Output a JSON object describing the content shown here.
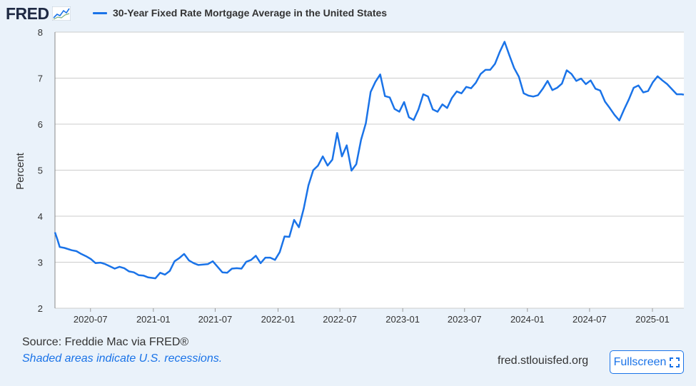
{
  "header": {
    "logo_text": "FRED"
  },
  "footer": {
    "source": "Source: Freddie Mac via FRED®",
    "recession_note": "Shaded areas indicate U.S. recessions.",
    "site": "fred.stlouisfed.org",
    "fullscreen_label": "Fullscreen"
  },
  "colors": {
    "series": "#1a73e8",
    "background": "#eaf2fa",
    "plot_bg": "#ffffff",
    "grid": "#cccccc"
  },
  "chart_data": {
    "type": "line",
    "title": "",
    "xlabel": "",
    "ylabel": "Percent",
    "ylim": [
      2,
      8
    ],
    "xlim": [
      "2020-03-19",
      "2025-04-03"
    ],
    "y_ticks": [
      2,
      3,
      4,
      5,
      6,
      7,
      8
    ],
    "x_ticks": [
      "2020-07",
      "2021-01",
      "2021-07",
      "2022-01",
      "2022-07",
      "2023-01",
      "2023-07",
      "2024-01",
      "2024-07",
      "2025-01"
    ],
    "grid": true,
    "legend": "top-left",
    "series": [
      {
        "name": "30-Year Fixed Rate Mortgage Average in the United States",
        "x": [
          "2020-03-19",
          "2020-03-26",
          "2020-04-02",
          "2020-04-16",
          "2020-05-07",
          "2020-05-21",
          "2020-06-04",
          "2020-06-18",
          "2020-07-02",
          "2020-07-16",
          "2020-07-30",
          "2020-08-13",
          "2020-08-27",
          "2020-09-10",
          "2020-09-24",
          "2020-10-08",
          "2020-10-22",
          "2020-11-05",
          "2020-11-19",
          "2020-12-03",
          "2020-12-17",
          "2021-01-07",
          "2021-01-21",
          "2021-02-04",
          "2021-02-18",
          "2021-03-04",
          "2021-03-18",
          "2021-04-01",
          "2021-04-15",
          "2021-04-29",
          "2021-05-13",
          "2021-05-27",
          "2021-06-10",
          "2021-06-24",
          "2021-07-08",
          "2021-07-22",
          "2021-08-05",
          "2021-08-19",
          "2021-09-02",
          "2021-09-16",
          "2021-09-30",
          "2021-10-14",
          "2021-10-28",
          "2021-11-11",
          "2021-11-25",
          "2021-12-09",
          "2021-12-23",
          "2022-01-06",
          "2022-01-20",
          "2022-02-03",
          "2022-02-17",
          "2022-03-03",
          "2022-03-17",
          "2022-03-31",
          "2022-04-14",
          "2022-04-28",
          "2022-05-12",
          "2022-05-26",
          "2022-06-09",
          "2022-06-23",
          "2022-07-07",
          "2022-07-21",
          "2022-08-04",
          "2022-08-18",
          "2022-09-01",
          "2022-09-15",
          "2022-09-29",
          "2022-10-13",
          "2022-10-27",
          "2022-11-10",
          "2022-11-24",
          "2022-12-08",
          "2022-12-22",
          "2023-01-05",
          "2023-01-19",
          "2023-02-02",
          "2023-02-16",
          "2023-03-02",
          "2023-03-16",
          "2023-03-30",
          "2023-04-13",
          "2023-04-27",
          "2023-05-11",
          "2023-05-25",
          "2023-06-08",
          "2023-06-22",
          "2023-07-06",
          "2023-07-20",
          "2023-08-03",
          "2023-08-17",
          "2023-08-31",
          "2023-09-14",
          "2023-09-28",
          "2023-10-12",
          "2023-10-26",
          "2023-11-09",
          "2023-11-23",
          "2023-12-07",
          "2023-12-21",
          "2024-01-04",
          "2024-01-18",
          "2024-02-01",
          "2024-02-15",
          "2024-02-29",
          "2024-03-14",
          "2024-03-28",
          "2024-04-11",
          "2024-04-25",
          "2024-05-09",
          "2024-05-23",
          "2024-06-06",
          "2024-06-20",
          "2024-07-04",
          "2024-07-18",
          "2024-08-01",
          "2024-08-15",
          "2024-08-29",
          "2024-09-12",
          "2024-09-26",
          "2024-10-10",
          "2024-10-24",
          "2024-11-07",
          "2024-11-21",
          "2024-12-05",
          "2024-12-19",
          "2025-01-02",
          "2025-01-16",
          "2025-01-30",
          "2025-02-13",
          "2025-02-27",
          "2025-03-13",
          "2025-03-27",
          "2025-04-03"
        ],
        "values": [
          3.65,
          3.5,
          3.33,
          3.31,
          3.26,
          3.24,
          3.18,
          3.13,
          3.07,
          2.98,
          2.99,
          2.96,
          2.91,
          2.86,
          2.9,
          2.87,
          2.8,
          2.78,
          2.72,
          2.71,
          2.67,
          2.65,
          2.77,
          2.73,
          2.81,
          3.02,
          3.09,
          3.18,
          3.04,
          2.98,
          2.94,
          2.95,
          2.96,
          3.02,
          2.9,
          2.78,
          2.77,
          2.86,
          2.87,
          2.86,
          3.01,
          3.05,
          3.14,
          2.98,
          3.1,
          3.1,
          3.05,
          3.22,
          3.56,
          3.55,
          3.92,
          3.76,
          4.16,
          4.67,
          5.0,
          5.1,
          5.3,
          5.1,
          5.23,
          5.81,
          5.3,
          5.54,
          4.99,
          5.13,
          5.66,
          6.02,
          6.7,
          6.92,
          7.08,
          6.61,
          6.58,
          6.33,
          6.27,
          6.48,
          6.15,
          6.09,
          6.32,
          6.65,
          6.6,
          6.32,
          6.27,
          6.43,
          6.35,
          6.57,
          6.71,
          6.67,
          6.81,
          6.78,
          6.9,
          7.09,
          7.18,
          7.18,
          7.31,
          7.57,
          7.79,
          7.5,
          7.22,
          7.03,
          6.67,
          6.62,
          6.6,
          6.63,
          6.77,
          6.94,
          6.74,
          6.79,
          6.88,
          7.17,
          7.09,
          6.94,
          6.99,
          6.87,
          6.95,
          6.77,
          6.73,
          6.49,
          6.35,
          6.2,
          6.08,
          6.32,
          6.54,
          6.79,
          6.84,
          6.69,
          6.72,
          6.91,
          7.04,
          6.95,
          6.87,
          6.76,
          6.65,
          6.65,
          6.64
        ]
      }
    ]
  }
}
